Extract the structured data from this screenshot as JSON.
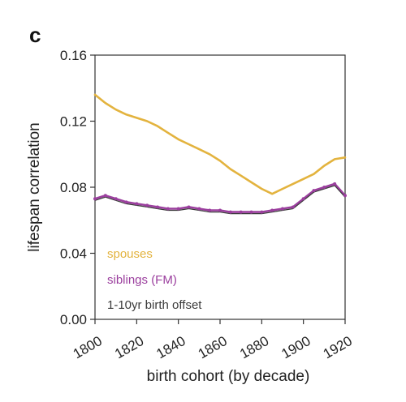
{
  "panel_label": "c",
  "colors": {
    "spouses": "#e3b33e",
    "siblings": "#9b3f9e",
    "offset": "#3a3a3a"
  },
  "chart_data": {
    "type": "line",
    "title": "",
    "xlabel": "birth cohort (by decade)",
    "ylabel": "lifespan correlation",
    "xlim": [
      1800,
      1920
    ],
    "ylim": [
      0,
      0.16
    ],
    "xticks": [
      "1800",
      "1820",
      "1840",
      "1860",
      "1880",
      "1900",
      "1920"
    ],
    "yticks": [
      "0.00",
      "0.04",
      "0.08",
      "0.12",
      "0.16"
    ],
    "grid": false,
    "legend_position": "bottom-left",
    "series": [
      {
        "name": "spouses",
        "color": "#e3b33e",
        "x": [
          1800,
          1805,
          1810,
          1815,
          1820,
          1825,
          1830,
          1835,
          1840,
          1845,
          1850,
          1855,
          1860,
          1865,
          1870,
          1875,
          1880,
          1885,
          1890,
          1895,
          1900,
          1905,
          1910,
          1915,
          1920
        ],
        "y": [
          0.136,
          0.131,
          0.127,
          0.124,
          0.122,
          0.12,
          0.117,
          0.113,
          0.109,
          0.106,
          0.103,
          0.1,
          0.096,
          0.091,
          0.087,
          0.083,
          0.079,
          0.076,
          0.079,
          0.082,
          0.085,
          0.088,
          0.093,
          0.097,
          0.098
        ]
      },
      {
        "name": "siblings (FM)",
        "color": "#9b3f9e",
        "x": [
          1800,
          1805,
          1810,
          1815,
          1820,
          1825,
          1830,
          1835,
          1840,
          1845,
          1850,
          1855,
          1860,
          1865,
          1870,
          1875,
          1880,
          1885,
          1890,
          1895,
          1900,
          1905,
          1910,
          1915,
          1920
        ],
        "y": [
          0.073,
          0.075,
          0.073,
          0.071,
          0.07,
          0.069,
          0.068,
          0.067,
          0.067,
          0.068,
          0.067,
          0.066,
          0.066,
          0.065,
          0.065,
          0.065,
          0.065,
          0.066,
          0.067,
          0.068,
          0.073,
          0.078,
          0.08,
          0.082,
          0.075
        ]
      },
      {
        "name": "1-10yr birth offset",
        "color": "#3a3a3a",
        "x": [
          1800,
          1805,
          1810,
          1815,
          1820,
          1825,
          1830,
          1835,
          1840,
          1845,
          1850,
          1855,
          1860,
          1865,
          1870,
          1875,
          1880,
          1885,
          1890,
          1895,
          1900,
          1905,
          1910,
          1915,
          1920
        ],
        "y": [
          0.072,
          0.074,
          0.072,
          0.07,
          0.069,
          0.068,
          0.067,
          0.066,
          0.066,
          0.067,
          0.066,
          0.065,
          0.065,
          0.064,
          0.064,
          0.064,
          0.064,
          0.065,
          0.066,
          0.067,
          0.072,
          0.077,
          0.079,
          0.081,
          0.074
        ]
      }
    ]
  }
}
